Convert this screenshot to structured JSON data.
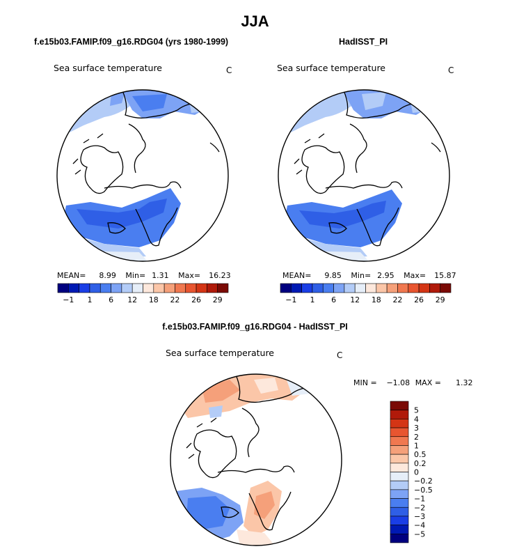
{
  "title": "JJA",
  "panels": [
    {
      "case_title": "f.e15b03.FAMIP.f09_g16.RDG04 (yrs 1980-1999)",
      "field_label": "Sea surface temperature",
      "units": "C",
      "stats": {
        "mean_label": "MEAN=",
        "mean": "8.99",
        "min_label": "Min=",
        "min": "1.31",
        "max_label": "Max=",
        "max": "16.23"
      }
    },
    {
      "case_title": "HadISST_PI",
      "field_label": "Sea surface temperature",
      "units": "C",
      "stats": {
        "mean_label": "MEAN=",
        "mean": "9.85",
        "min_label": "Min=",
        "min": "2.95",
        "max_label": "Max=",
        "max": "15.87"
      }
    },
    {
      "case_title": "f.e15b03.FAMIP.f09_g16.RDG04 - HadISST_PI",
      "field_label": "Sea surface temperature",
      "units": "C",
      "stats": {
        "min_label": "MIN =",
        "min": "−1.08",
        "max_label": "MAX =",
        "max": "1.32"
      }
    }
  ],
  "sst_colorbar": {
    "colors": [
      "#00007f",
      "#0019b3",
      "#1a3ee6",
      "#2f5fe6",
      "#4a7ef0",
      "#7da3f5",
      "#b3ccf7",
      "#e6eef8",
      "#fde8dc",
      "#fbc6a8",
      "#f5a07a",
      "#f07850",
      "#e85530",
      "#d43515",
      "#b01a0a",
      "#7a0a05"
    ],
    "labels": [
      "−1",
      "1",
      "6",
      "12",
      "18",
      "22",
      "26",
      "29"
    ]
  },
  "diff_colorbar": {
    "colors": [
      "#7a0a05",
      "#b01a0a",
      "#d43515",
      "#e85530",
      "#f07850",
      "#f5a07a",
      "#fbc6a8",
      "#fde8dc",
      "#e6eef8",
      "#b3ccf7",
      "#7da3f5",
      "#4a7ef0",
      "#2f5fe6",
      "#1a3ee6",
      "#0019b3",
      "#00007f"
    ],
    "labels": [
      "5",
      "4",
      "3",
      "2",
      "1",
      "0.5",
      "0.2",
      "0",
      "−0.2",
      "−0.5",
      "−1",
      "−2",
      "−3",
      "−4",
      "−5"
    ]
  }
}
